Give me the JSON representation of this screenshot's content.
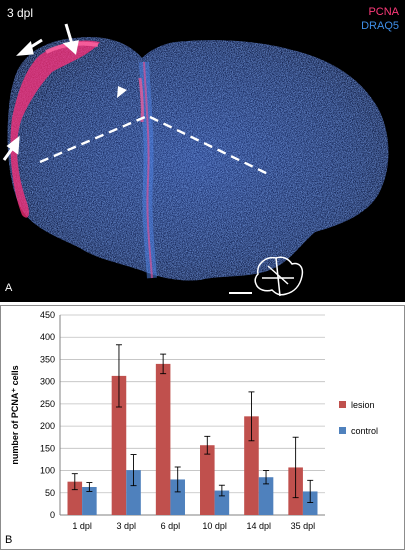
{
  "panel_a": {
    "panel_letter": "A",
    "timepoint": "3 dpl",
    "legend": [
      {
        "label": "PCNA",
        "color": "#ff3a7a"
      },
      {
        "label": "DRAQ5",
        "color": "#3f8fe8"
      }
    ],
    "background_color": "#000000"
  },
  "panel_b": {
    "panel_letter": "B"
  },
  "chart_data": {
    "type": "bar",
    "title": "",
    "xlabel": "",
    "ylabel": "number of PCNA⁺ cells",
    "ylim": [
      0,
      450
    ],
    "yticks": [
      0,
      50,
      100,
      150,
      200,
      250,
      300,
      350,
      400,
      450
    ],
    "grid": true,
    "legend_position": "right",
    "categories": [
      "1 dpl",
      "3 dpl",
      "6 dpl",
      "10 dpl",
      "14 dpl",
      "35 dpl"
    ],
    "series": [
      {
        "name": "lesion",
        "color": "#c0504d",
        "values": [
          75,
          313,
          340,
          157,
          222,
          107
        ],
        "errors": [
          18,
          70,
          22,
          20,
          55,
          68
        ]
      },
      {
        "name": "control",
        "color": "#4f81bd",
        "values": [
          63,
          101,
          80,
          55,
          85,
          53
        ],
        "errors": [
          10,
          35,
          28,
          12,
          15,
          25
        ]
      }
    ]
  }
}
